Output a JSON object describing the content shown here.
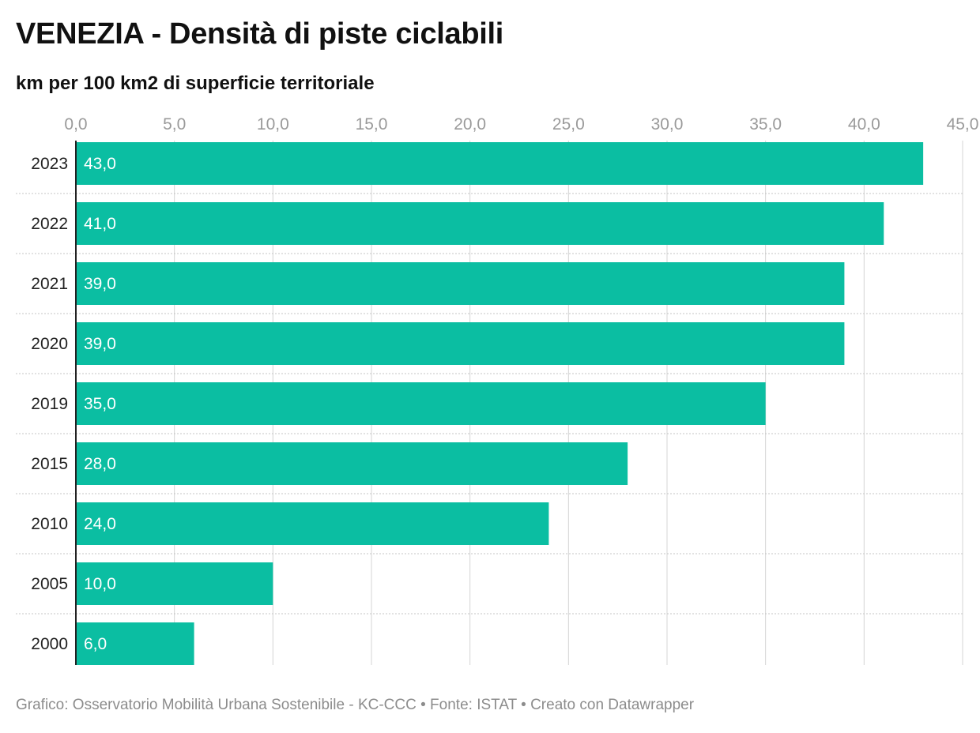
{
  "title": "VENEZIA - Densità di piste ciclabili",
  "subtitle": "km per 100 km2 di superficie territoriale",
  "footer": "Grafico: Osservatorio Mobilità Urbana Sostenibile - KC-CCC • Fonte: ISTAT • Creato con Datawrapper",
  "colors": {
    "bar": "#0bbea2",
    "value_label": "#ffffff",
    "grid": "#d4d4d4",
    "axis": "#222222"
  },
  "chart_data": {
    "type": "bar",
    "orientation": "horizontal",
    "categories": [
      "2023",
      "2022",
      "2021",
      "2020",
      "2019",
      "2015",
      "2010",
      "2005",
      "2000"
    ],
    "values": [
      43.0,
      41.0,
      39.0,
      39.0,
      35.0,
      28.0,
      24.0,
      10.0,
      6.0
    ],
    "value_labels": [
      "43,0",
      "41,0",
      "39,0",
      "39,0",
      "35,0",
      "28,0",
      "24,0",
      "10,0",
      "6,0"
    ],
    "xlim": [
      0,
      45
    ],
    "x_ticks": [
      0,
      5,
      10,
      15,
      20,
      25,
      30,
      35,
      40,
      45
    ],
    "x_tick_labels": [
      "0,0",
      "5,0",
      "10,0",
      "15,0",
      "20,0",
      "25,0",
      "30,0",
      "35,0",
      "40,0",
      "45,0"
    ],
    "x_axis_position": "top",
    "grid": true,
    "legend": "none"
  }
}
